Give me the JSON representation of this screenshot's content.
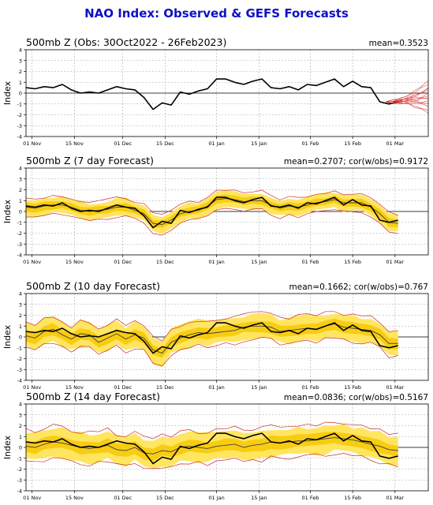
{
  "page": {
    "title": "NAO Index: Observed & GEFS Forecasts"
  },
  "colors": {
    "title": "#1010c8",
    "observed": "#000000",
    "member": "#d42020",
    "band_outer": "#ffe560",
    "band_inner": "#f8cc10",
    "bound": "#c83030",
    "mean": "#404040",
    "grid": "#aaaaaa"
  },
  "axes": {
    "ylabel": "Index",
    "yticks": [
      "4",
      "3",
      "2",
      "1",
      "0",
      "-1",
      "-2",
      "-3",
      "-4"
    ],
    "xticks": [
      "01 Nov",
      "15 Nov",
      "01 Dec",
      "15 Dec",
      "01 Jan",
      "15 Jan",
      "01 Feb",
      "15 Feb",
      "01 Mar"
    ]
  },
  "chart_data": [
    {
      "type": "line",
      "title": "500mb Z (Obs: 30Oct2022 - 26Feb2023)",
      "stats": "mean=0.3523",
      "xlim": [
        "2022-10-30",
        "2023-03-12"
      ],
      "ylim": [
        -4,
        4
      ],
      "x_start": "2022-10-30",
      "x_step_days": 3,
      "series": [
        {
          "role": "observed",
          "values": [
            0.5,
            0.4,
            0.6,
            0.5,
            0.8,
            0.3,
            0.0,
            0.1,
            0.0,
            0.3,
            0.6,
            0.4,
            0.3,
            -0.4,
            -1.5,
            -0.9,
            -1.1,
            0.1,
            -0.1,
            0.2,
            0.4,
            1.3,
            1.3,
            1.0,
            0.8,
            1.1,
            1.3,
            0.5,
            0.4,
            0.6,
            0.3,
            0.8,
            0.7,
            1.0,
            1.3,
            0.6,
            1.1,
            0.6,
            0.5,
            -0.8,
            -1.0,
            -0.8
          ]
        }
      ],
      "forecast_members": {
        "start": "2023-02-26",
        "end": "2023-03-12",
        "start_value": -0.8,
        "end_values": [
          1.2,
          0.9,
          0.6,
          0.4,
          0.2,
          0.0,
          -0.2,
          -0.4,
          -0.6,
          -0.8,
          -1.0,
          -1.2,
          -1.5,
          -1.7
        ]
      }
    },
    {
      "type": "line",
      "title": "500mb Z (7 day Forecast)",
      "stats": "mean=0.2707; cor(w/obs)=0.9172",
      "xlim": [
        "2022-10-30",
        "2023-03-12"
      ],
      "ylim": [
        -4,
        4
      ],
      "x_start": "2022-10-30",
      "x_step_days": 3,
      "series": [
        {
          "role": "observed",
          "values": [
            0.5,
            0.4,
            0.6,
            0.5,
            0.8,
            0.3,
            0.0,
            0.1,
            0.0,
            0.3,
            0.6,
            0.4,
            0.3,
            -0.4,
            -1.5,
            -0.9,
            -1.1,
            0.1,
            -0.1,
            0.2,
            0.4,
            1.3,
            1.3,
            1.0,
            0.8,
            1.1,
            1.3,
            0.5,
            0.4,
            0.6,
            0.3,
            0.8,
            0.7,
            1.0,
            1.3,
            0.6,
            1.1,
            0.6,
            0.5,
            -0.8,
            -1.0,
            -0.8
          ]
        },
        {
          "role": "forecast_mean",
          "values": [
            0.4,
            0.3,
            0.5,
            0.6,
            0.6,
            0.4,
            0.1,
            0.0,
            0.1,
            0.2,
            0.4,
            0.4,
            0.1,
            -0.2,
            -1.1,
            -1.2,
            -0.8,
            -0.2,
            0.0,
            0.1,
            0.5,
            1.1,
            1.2,
            1.1,
            0.9,
            1.0,
            1.0,
            0.6,
            0.3,
            0.5,
            0.4,
            0.6,
            0.8,
            0.9,
            1.1,
            0.8,
            0.8,
            0.8,
            0.4,
            -0.2,
            -1.0,
            -1.1
          ]
        }
      ],
      "band": {
        "outer_halfwidth": 0.75,
        "inner_halfwidth": 0.35,
        "bound_halfwidth": 0.85
      }
    },
    {
      "type": "line",
      "title": "500mb Z (10 day Forecast)",
      "stats": "mean=0.1662; cor(w/obs)=0.767",
      "xlim": [
        "2022-10-30",
        "2023-03-12"
      ],
      "ylim": [
        -4,
        4
      ],
      "x_start": "2022-10-30",
      "x_step_days": 3,
      "series": [
        {
          "role": "observed",
          "values": [
            0.5,
            0.4,
            0.6,
            0.5,
            0.8,
            0.3,
            0.0,
            0.1,
            0.0,
            0.3,
            0.6,
            0.4,
            0.3,
            -0.4,
            -1.5,
            -0.9,
            -1.1,
            0.1,
            -0.1,
            0.2,
            0.4,
            1.3,
            1.3,
            1.0,
            0.8,
            1.1,
            1.3,
            0.5,
            0.4,
            0.6,
            0.3,
            0.8,
            0.7,
            1.0,
            1.3,
            0.6,
            1.1,
            0.6,
            0.5,
            -0.8,
            -1.0,
            -0.8
          ]
        },
        {
          "role": "forecast_mean",
          "values": [
            0.1,
            -0.1,
            0.5,
            0.7,
            0.2,
            -0.2,
            0.3,
            0.2,
            -0.5,
            -0.1,
            0.3,
            -0.2,
            0.2,
            -0.1,
            -1.2,
            -1.5,
            -0.5,
            -0.1,
            0.2,
            0.4,
            0.3,
            0.4,
            0.5,
            0.6,
            0.9,
            1.0,
            1.0,
            0.9,
            0.5,
            0.6,
            0.7,
            0.8,
            0.7,
            1.0,
            1.2,
            0.9,
            0.8,
            0.7,
            0.6,
            0.2,
            -0.6,
            -0.6
          ]
        }
      ],
      "band": {
        "outer_halfwidth": 1.1,
        "inner_halfwidth": 0.5,
        "bound_halfwidth": 1.2
      }
    },
    {
      "type": "line",
      "title": "500mb Z (14 day Forecast)",
      "stats": "mean=0.0836; cor(w/obs)=0.5167",
      "xlim": [
        "2022-10-30",
        "2023-03-12"
      ],
      "ylim": [
        -4,
        4
      ],
      "x_start": "2022-10-30",
      "x_step_days": 3,
      "series": [
        {
          "role": "observed",
          "values": [
            0.5,
            0.4,
            0.6,
            0.5,
            0.8,
            0.3,
            0.0,
            0.1,
            0.0,
            0.3,
            0.6,
            0.4,
            0.3,
            -0.4,
            -1.5,
            -0.9,
            -1.1,
            0.1,
            -0.1,
            0.2,
            0.4,
            1.3,
            1.3,
            1.0,
            0.8,
            1.1,
            1.3,
            0.5,
            0.4,
            0.6,
            0.3,
            0.8,
            0.7,
            1.0,
            1.3,
            0.6,
            1.1,
            0.6,
            0.5,
            -0.8,
            -1.0,
            -0.8
          ]
        },
        {
          "role": "forecast_mean",
          "values": [
            0.1,
            0.0,
            0.3,
            0.5,
            0.4,
            0.2,
            0.0,
            -0.1,
            0.0,
            0.2,
            -0.2,
            -0.3,
            0.0,
            -0.5,
            -0.6,
            -0.3,
            -0.4,
            0.0,
            0.1,
            0.0,
            -0.1,
            0.1,
            0.2,
            0.3,
            0.0,
            0.2,
            0.3,
            0.5,
            0.4,
            0.5,
            0.6,
            0.6,
            0.7,
            0.8,
            0.9,
            0.8,
            0.7,
            0.5,
            0.3,
            0.1,
            -0.2,
            -0.3
          ]
        }
      ],
      "band": {
        "outer_halfwidth": 1.25,
        "inner_halfwidth": 0.55,
        "bound_halfwidth": 1.45
      }
    }
  ]
}
